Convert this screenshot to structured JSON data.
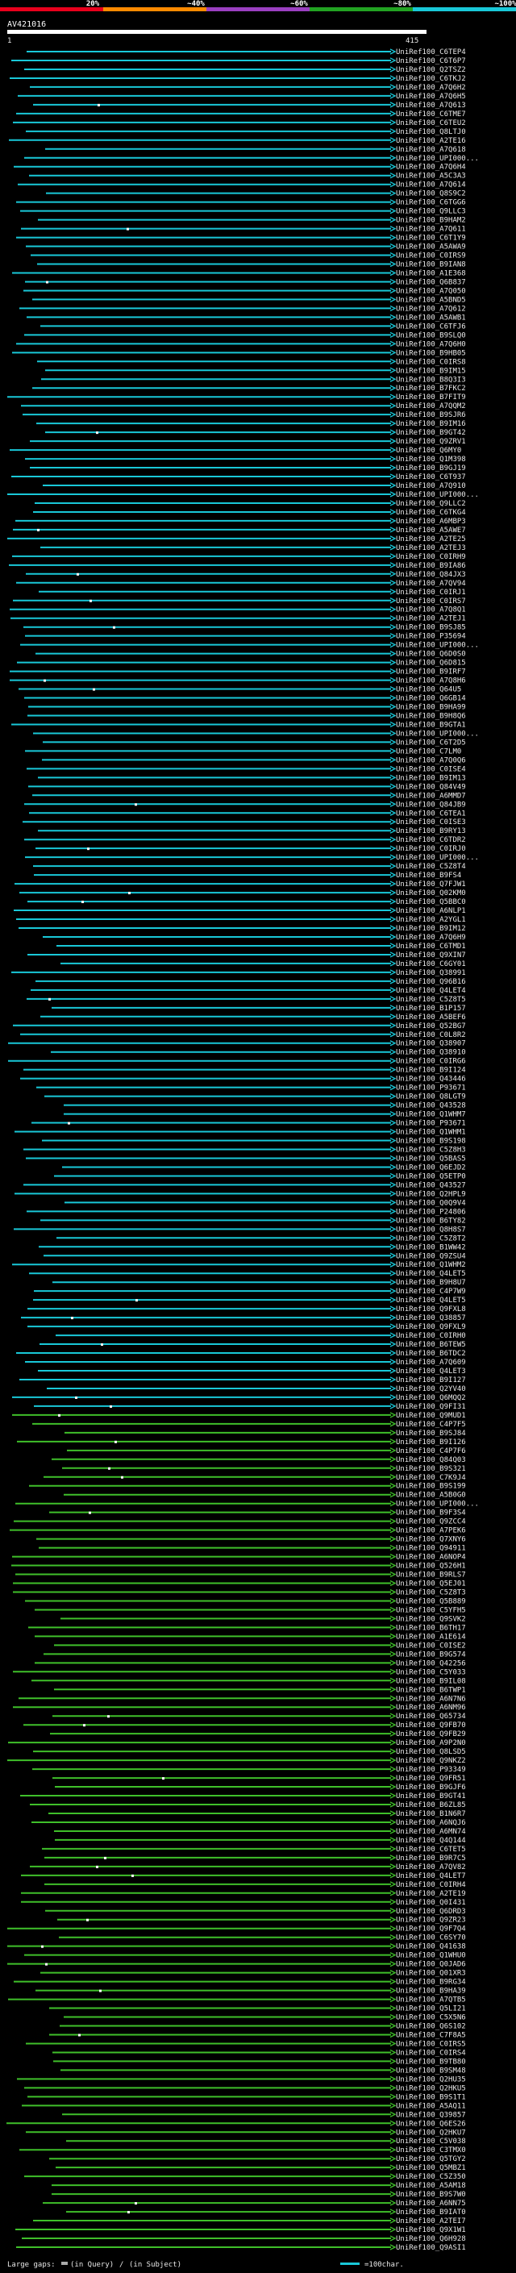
{
  "query_id": "AV421016",
  "ruler": {
    "start": "1",
    "end": "415"
  },
  "color_scale": {
    "labels": [
      "20%",
      "~40%",
      "~60%",
      "~80%",
      "~100%"
    ],
    "colors": [
      "#e8001c",
      "#ff8a00",
      "#9a3fc0",
      "#22a322",
      "#19c8d8"
    ]
  },
  "footer": {
    "gaps_prefix": "Large gaps:",
    "gaps_in_query": "(in Query)",
    "gaps_sep": "/",
    "gaps_in_subject": "(in Subject)",
    "scale_note": "=100char."
  },
  "chart_data": {
    "type": "alignment-overview",
    "title": "AV421016",
    "x_range": [
      1,
      415
    ],
    "scale": "100 characters per segment",
    "legend": [
      "20%",
      "~40%",
      "~60%",
      "~80%",
      "~100%"
    ],
    "hits": [
      "UniRef100_C6TEP4",
      "UniRef100_C6T6P7",
      "UniRef100_Q2TSZ2",
      "UniRef100_C6TKJ2",
      "UniRef100_A7Q6H2",
      "UniRef100_A7Q6H5",
      "UniRef100_A7Q613",
      "UniRef100_C6TME7",
      "UniRef100_C6TEU2",
      "UniRef100_Q8LTJ0",
      "UniRef100_A2TE16",
      "UniRef100_A7Q618",
      "UniRef100_UPI000...",
      "UniRef100_A7Q6H4",
      "UniRef100_A5C3A3",
      "UniRef100_A7Q614",
      "UniRef100_Q8S9C2",
      "UniRef100_C6TGG6",
      "UniRef100_Q9LLC3",
      "UniRef100_B9HAM2",
      "UniRef100_A7Q611",
      "UniRef100_C6T1Y9",
      "UniRef100_A5AWA9",
      "UniRef100_C0IRS9",
      "UniRef100_B9IAN8",
      "UniRef100_A1E368",
      "UniRef100_Q6B837",
      "UniRef100_A7Q050",
      "UniRef100_A5BND5",
      "UniRef100_A7Q612",
      "UniRef100_A5AWB1",
      "UniRef100_C6TFJ6",
      "UniRef100_B9SLQ0",
      "UniRef100_A7Q6H0",
      "UniRef100_B9HB05",
      "UniRef100_C0IRS8",
      "UniRef100_B9IM15",
      "UniRef100_B8Q3I3",
      "UniRef100_B7FKC2",
      "UniRef100_B7FIT9",
      "UniRef100_A7QQM2",
      "UniRef100_B9SJR6",
      "UniRef100_B9IM16",
      "UniRef100_B9GT42",
      "UniRef100_Q9ZRV1",
      "UniRef100_Q6MY0",
      "UniRef100_Q1M398",
      "UniRef100_B9GJ19",
      "UniRef100_C6T937",
      "UniRef100_A7Q910",
      "UniRef100_UPI000...",
      "UniRef100_Q9LLC2",
      "UniRef100_C6TKG4",
      "UniRef100_A6MBP3",
      "UniRef100_A5AWE7",
      "UniRef100_A2TE25",
      "UniRef100_A2TEJ3",
      "UniRef100_C0IRH9",
      "UniRef100_B9IA86",
      "UniRef100_Q84JX3",
      "UniRef100_A7QV94",
      "UniRef100_C0IRJ1",
      "UniRef100_C0IRS7",
      "UniRef100_A7Q8Q1",
      "UniRef100_A2TEJ1",
      "UniRef100_B9SJ85",
      "UniRef100_P35694",
      "UniRef100_UPI000...",
      "UniRef100_Q6D0S0",
      "UniRef100_Q6D815",
      "UniRef100_B9IRF7",
      "UniRef100_A7Q8H6",
      "UniRef100_Q64U5",
      "UniRef100_Q6GB14",
      "UniRef100_B9HA99",
      "UniRef100_B9H8Q6",
      "UniRef100_B9GTA1",
      "UniRef100_UPI000...",
      "UniRef100_C6T2D5",
      "UniRef100_C7LM0",
      "UniRef100_A7Q0Q6",
      "UniRef100_C0ISE4",
      "UniRef100_B9IM13",
      "UniRef100_Q84V49",
      "UniRef100_A6MMD7",
      "UniRef100_Q84JB9",
      "UniRef100_C6TEA1",
      "UniRef100_C0ISE3",
      "UniRef100_B9RY13",
      "UniRef100_C6TDR2",
      "UniRef100_C0IRJ0",
      "UniRef100_UPI000...",
      "UniRef100_C5Z8T4",
      "UniRef100_B9FS4",
      "UniRef100_Q7FJW1",
      "UniRef100_Q02KM0",
      "UniRef100_Q5BBC0",
      "UniRef100_A6NLP1",
      "UniRef100_A2YGL1",
      "UniRef100_B9IM12",
      "UniRef100_A7Q6H9",
      "UniRef100_C6TMD1",
      "UniRef100_Q9XIN7",
      "UniRef100_C6GY01",
      "UniRef100_Q38991",
      "UniRef100_Q96B16",
      "UniRef100_Q4LET4",
      "UniRef100_C5Z8T5",
      "UniRef100_B1P157",
      "UniRef100_A5BEF6",
      "UniRef100_Q52BG7",
      "UniRef100_C0L8R2",
      "UniRef100_Q38907",
      "UniRef100_Q38910",
      "UniRef100_C0IRG6",
      "UniRef100_B9I124",
      "UniRef100_Q43446",
      "UniRef100_P93671",
      "UniRef100_Q8LGT9",
      "UniRef100_Q43528",
      "UniRef100_Q1WHM7",
      "UniRef100_P93671",
      "UniRef100_Q1WHM1",
      "UniRef100_B9S198",
      "UniRef100_C5Z8H3",
      "UniRef100_Q5BAS5",
      "UniRef100_Q6EJD2",
      "UniRef100_Q5ETP0",
      "UniRef100_Q43527",
      "UniRef100_Q2HPL9",
      "UniRef100_Q0Q9V4",
      "UniRef100_P24806",
      "UniRef100_B6TY82",
      "UniRef100_Q8H8S7",
      "UniRef100_C5Z8T2",
      "UniRef100_B1WW42",
      "UniRef100_Q9ZSU4",
      "UniRef100_Q1WHM2",
      "UniRef100_Q4LET5",
      "UniRef100_B9H8U7",
      "UniRef100_C4P7W9",
      "UniRef100_Q4LET5",
      "UniRef100_Q9FXL8",
      "UniRef100_Q38857",
      "UniRef100_Q9FXL9",
      "UniRef100_C0IRH0",
      "UniRef100_B6TEW5",
      "UniRef100_B6TDC2",
      "UniRef100_A7Q609",
      "UniRef100_Q4LET3",
      "UniRef100_B9I127",
      "UniRef100_Q2YV40",
      "UniRef100_Q6MQQ2",
      "UniRef100_Q9FI31",
      "UniRef100_Q9MUD1",
      "UniRef100_C4P7F5",
      "UniRef100_B9SJ84",
      "UniRef100_B9I126",
      "UniRef100_C4P7F6",
      "UniRef100_Q84Q03",
      "UniRef100_B9S321",
      "UniRef100_C7K9J4",
      "UniRef100_B9S199",
      "UniRef100_A5B0G0",
      "UniRef100_UPI000...",
      "UniRef100_B9F3S4",
      "UniRef100_Q9ZCC4",
      "UniRef100_A7PEK6",
      "UniRef100_Q7XNY6",
      "UniRef100_Q94911",
      "UniRef100_A6NOP4",
      "UniRef100_Q526H1",
      "UniRef100_B9RLS7",
      "UniRef100_Q5EJ01",
      "UniRef100_C5Z8T3",
      "UniRef100_Q5B889",
      "UniRef100_C5YFH5",
      "UniRef100_Q9SVK2",
      "UniRef100_B6TH17",
      "UniRef100_A1E614",
      "UniRef100_C0ISE2",
      "UniRef100_B9G574",
      "UniRef100_Q42256",
      "UniRef100_C5Y033",
      "UniRef100_B9IL08",
      "UniRef100_B6TWP1",
      "UniRef100_A6N7N6",
      "UniRef100_A6NM96",
      "UniRef100_Q65734",
      "UniRef100_Q9FB70",
      "UniRef100_Q9FB29",
      "UniRef100_A9P2N0",
      "UniRef100_Q8LSD5",
      "UniRef100_Q9NKZ2",
      "UniRef100_P93349",
      "UniRef100_Q9FR51",
      "UniRef100_B9GJF6",
      "UniRef100_B9GT41",
      "UniRef100_B6ZL85",
      "UniRef100_B1N6R7",
      "UniRef100_A6NQJ6",
      "UniRef100_A6MN74",
      "UniRef100_Q4Q144",
      "UniRef100_C6TET5",
      "UniRef100_B9R7C5",
      "UniRef100_A7QV82",
      "UniRef100_Q4LET7",
      "UniRef100_C0IRH4",
      "UniRef100_A2TE19",
      "UniRef100_Q0I431",
      "UniRef100_Q6DRD3",
      "UniRef100_Q9ZR23",
      "UniRef100_Q9F7Q4",
      "UniRef100_C6SY70",
      "UniRef100_Q41638",
      "UniRef100_Q1WHU0",
      "UniRef100_Q0JAD6",
      "UniRef100_Q01XR3",
      "UniRef100_B9RG34",
      "UniRef100_B9HA39",
      "UniRef100_A7QTB5",
      "UniRef100_Q5LI21",
      "UniRef100_C5X5N6",
      "UniRef100_Q6S102",
      "UniRef100_C7F8A5",
      "UniRef100_C0IRS5",
      "UniRef100_C0IRS4",
      "UniRef100_B9TB80",
      "UniRef100_B9SM48",
      "UniRef100_Q2HU35",
      "UniRef100_Q2HKU5",
      "UniRef100_B9S1T1",
      "UniRef100_A5AQ11",
      "UniRef100_Q39857",
      "UniRef100_Q6ES26",
      "UniRef100_Q2HKU7",
      "UniRef100_C5V038",
      "UniRef100_C3TMX0",
      "UniRef100_Q5TGY2",
      "UniRef100_Q5MBZ1",
      "UniRef100_C5Z350",
      "UniRef100_A5AM18",
      "UniRef100_B9S7W0",
      "UniRef100_A6NN75",
      "UniRef100_B9IAT0",
      "UniRef100_A2TEI7",
      "UniRef100_Q9X1W1",
      "UniRef100_Q6H928",
      "UniRef100_Q9ASI1"
    ]
  }
}
